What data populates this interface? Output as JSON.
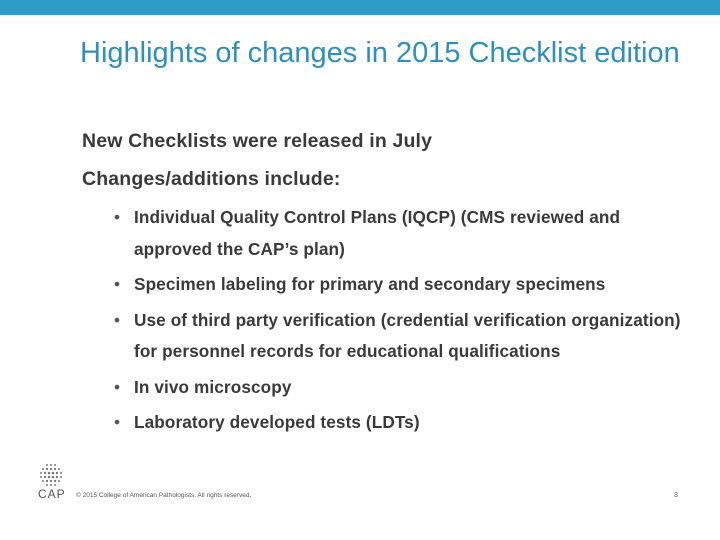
{
  "title": "Highlights of changes in 2015 Checklist edition",
  "lead_lines": [
    "New Checklists were released in July",
    "Changes/additions include:"
  ],
  "bullets": [
    "Individual Quality Control Plans (IQCP) (CMS reviewed and approved the CAP’s plan)",
    "Specimen labeling for primary and secondary specimens",
    "Use of third party verification (credential verification organization) for personnel records for educational qualifications",
    "In vivo microscopy",
    "Laboratory developed tests (LDTs)"
  ],
  "bullet_glyph": "•",
  "logo": {
    "text": "CAP",
    "icon": "cap-dot-globe-icon"
  },
  "footer": "© 2015 College of American Pathologists. All rights reserved.",
  "page_number": "3",
  "colors": {
    "accent_bar": "#2e9bc9",
    "title": "#2c8fbe",
    "body_text": "#3a3a3a"
  }
}
